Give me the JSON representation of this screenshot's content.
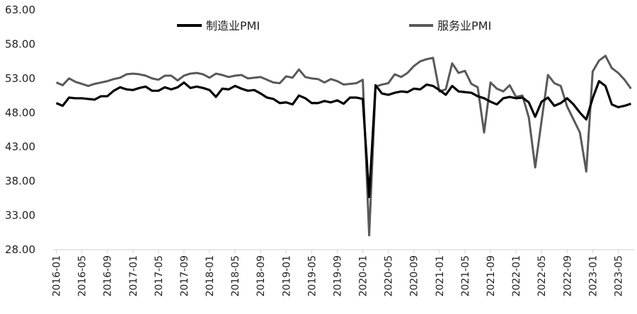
{
  "chart_data": {
    "type": "line",
    "title": "",
    "xlabel": "",
    "ylabel": "",
    "ylim": [
      28,
      63
    ],
    "yticks": [
      "63.00",
      "58.00",
      "53.00",
      "48.00",
      "43.00",
      "38.00",
      "33.00",
      "28.00"
    ],
    "xticks": [
      "2016-01",
      "2016-05",
      "2016-09",
      "2017-01",
      "2017-05",
      "2017-09",
      "2018-01",
      "2018-05",
      "2018-09",
      "2019-01",
      "2019-05",
      "2019-09",
      "2020-01",
      "2020-05",
      "2020-09",
      "2021-01",
      "2021-05",
      "2021-09",
      "2022-01",
      "2022-05",
      "2022-09",
      "2023-01",
      "2023-05"
    ],
    "legend_position": "top",
    "grid": false,
    "x_start": "2016-01",
    "x_end": "2023-07",
    "series": [
      {
        "name": "制造业PMI",
        "color": "#000000",
        "values": [
          49.4,
          49.0,
          50.2,
          50.1,
          50.1,
          50.0,
          49.9,
          50.4,
          50.4,
          51.2,
          51.7,
          51.4,
          51.3,
          51.6,
          51.8,
          51.2,
          51.2,
          51.7,
          51.4,
          51.7,
          52.4,
          51.6,
          51.8,
          51.6,
          51.3,
          50.3,
          51.5,
          51.4,
          51.9,
          51.5,
          51.2,
          51.3,
          50.8,
          50.2,
          50.0,
          49.4,
          49.5,
          49.2,
          50.5,
          50.1,
          49.4,
          49.4,
          49.7,
          49.5,
          49.8,
          49.3,
          50.2,
          50.2,
          50.0,
          35.7,
          52.0,
          50.8,
          50.6,
          50.9,
          51.1,
          51.0,
          51.5,
          51.4,
          52.1,
          51.9,
          51.3,
          50.6,
          51.9,
          51.1,
          51.0,
          50.9,
          50.4,
          50.1,
          49.6,
          49.2,
          50.1,
          50.3,
          50.1,
          50.2,
          49.5,
          47.4,
          49.6,
          50.2,
          49.0,
          49.4,
          50.1,
          49.2,
          48.0,
          47.0,
          50.1,
          52.6,
          51.9,
          49.2,
          48.8,
          49.0,
          49.3
        ]
      },
      {
        "name": "服务业PMI",
        "color": "#595959",
        "values": [
          52.4,
          52.0,
          53.0,
          52.5,
          52.2,
          51.9,
          52.2,
          52.4,
          52.6,
          52.9,
          53.1,
          53.6,
          53.7,
          53.6,
          53.4,
          53.0,
          52.8,
          53.4,
          53.4,
          52.7,
          53.4,
          53.7,
          53.8,
          53.6,
          53.1,
          53.7,
          53.5,
          53.2,
          53.4,
          53.5,
          53.0,
          53.1,
          53.2,
          52.8,
          52.4,
          52.3,
          53.3,
          53.1,
          54.3,
          53.2,
          53.0,
          52.9,
          52.4,
          52.9,
          52.6,
          52.1,
          52.2,
          52.3,
          52.8,
          30.1,
          51.8,
          52.1,
          52.3,
          53.6,
          53.2,
          53.8,
          54.8,
          55.5,
          55.8,
          56.0,
          51.1,
          51.4,
          55.2,
          53.8,
          54.1,
          52.2,
          51.7,
          45.1,
          52.4,
          51.5,
          51.1,
          52.0,
          50.3,
          50.5,
          47.3,
          40.0,
          46.8,
          53.5,
          52.3,
          51.9,
          48.9,
          47.0,
          45.1,
          39.4,
          54.0,
          55.6,
          56.3,
          54.5,
          53.8,
          52.8,
          51.5
        ]
      }
    ]
  }
}
